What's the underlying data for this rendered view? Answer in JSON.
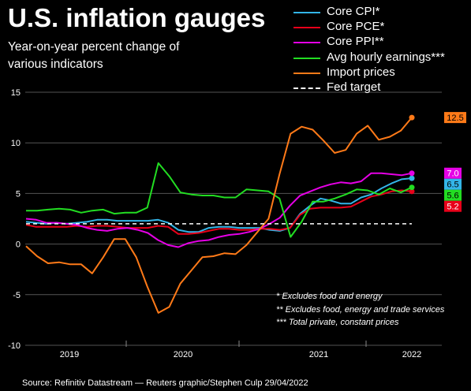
{
  "chart_data": {
    "type": "line",
    "title": "U.S. inflation gauges",
    "subtitle": "Year-on-year percent change of various indicators",
    "xlabel": "",
    "ylabel": "",
    "ylim": [
      -10,
      15
    ],
    "y_ticks": [
      15,
      10,
      5,
      0,
      -5,
      -10
    ],
    "x_ticks": [
      "2019",
      "2020",
      "2021",
      "2022"
    ],
    "grid": true,
    "legend_position": "top-right",
    "series": [
      {
        "name": "Core CPI*",
        "color": "#33b5e8",
        "end_label": "6.5",
        "values": [
          2.2,
          2.1,
          2.0,
          2.1,
          2.0,
          2.1,
          2.2,
          2.4,
          2.4,
          2.3,
          2.3,
          2.3,
          2.3,
          2.4,
          2.1,
          1.4,
          1.2,
          1.2,
          1.6,
          1.7,
          1.7,
          1.6,
          1.6,
          1.6,
          1.4,
          1.3,
          1.6,
          3.0,
          3.8,
          4.5,
          4.3,
          4.0,
          4.0,
          4.6,
          4.9,
          5.5,
          6.0,
          6.4,
          6.5
        ]
      },
      {
        "name": "Core PCE*",
        "color": "#e8001a",
        "end_label": "5.2",
        "values": [
          1.9,
          1.7,
          1.7,
          1.7,
          1.7,
          1.8,
          1.7,
          1.8,
          1.8,
          1.7,
          1.6,
          1.6,
          1.6,
          1.8,
          1.7,
          1.0,
          1.0,
          1.1,
          1.3,
          1.5,
          1.5,
          1.4,
          1.4,
          1.5,
          1.5,
          1.4,
          1.6,
          2.9,
          3.5,
          3.6,
          3.6,
          3.6,
          3.7,
          4.2,
          4.7,
          4.9,
          5.2,
          5.3,
          5.2
        ]
      },
      {
        "name": "Core PPI**",
        "color": "#e600e6",
        "end_label": "7.0",
        "values": [
          2.5,
          2.4,
          2.1,
          2.1,
          2.0,
          1.9,
          1.6,
          1.4,
          1.3,
          1.5,
          1.6,
          1.4,
          1.1,
          0.4,
          -0.1,
          -0.3,
          0.1,
          0.3,
          0.4,
          0.7,
          0.9,
          1.0,
          1.2,
          1.5,
          2.0,
          2.6,
          3.8,
          4.8,
          5.2,
          5.6,
          5.9,
          6.1,
          6.0,
          6.2,
          7.0,
          7.0,
          6.9,
          6.8,
          7.0
        ]
      },
      {
        "name": "Avg hourly earnings***",
        "color": "#22dd22",
        "end_label": "5.6",
        "values": [
          3.3,
          3.3,
          3.4,
          3.5,
          3.4,
          3.1,
          3.3,
          3.4,
          3.0,
          3.1,
          3.1,
          3.6,
          8.0,
          6.7,
          5.1,
          4.9,
          4.8,
          4.8,
          4.6,
          4.6,
          5.4,
          5.3,
          5.2,
          4.5,
          0.7,
          2.2,
          4.2,
          4.2,
          4.5,
          4.9,
          5.4,
          5.3,
          4.9,
          5.5,
          5.1,
          5.6
        ]
      },
      {
        "name": "Import prices",
        "color": "#ff7a18",
        "end_label": "12.5",
        "values": [
          -0.2,
          -1.2,
          -1.9,
          -1.8,
          -2.0,
          -2.0,
          -2.9,
          -1.3,
          0.5,
          0.5,
          -1.3,
          -4.2,
          -6.8,
          -6.2,
          -3.9,
          -2.6,
          -1.3,
          -1.2,
          -0.9,
          -1.0,
          -0.1,
          1.2,
          2.5,
          6.9,
          10.9,
          11.6,
          11.3,
          10.2,
          9.0,
          9.3,
          10.9,
          11.7,
          10.3,
          10.6,
          11.2,
          12.5
        ]
      },
      {
        "name": "Fed target",
        "color": "#ffffff",
        "dashed": true,
        "values": [
          2,
          2
        ]
      }
    ]
  },
  "notes": [
    "* Excludes food and energy",
    "** Excludes food, energy and trade services",
    "*** Total private, constant prices"
  ],
  "source": "Source: Refinitiv Datastream — Reuters graphic/Stephen Culp 29/04/2022"
}
